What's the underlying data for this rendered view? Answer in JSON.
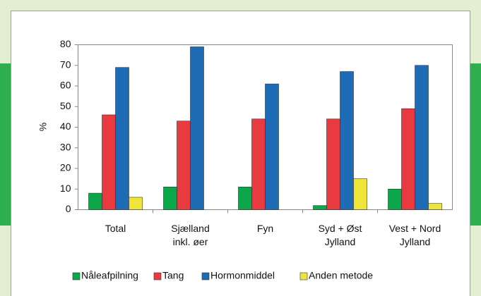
{
  "chart_data": {
    "type": "bar",
    "ylabel": "%",
    "categories": [
      [
        "Total"
      ],
      [
        "Sjælland",
        "inkl. øer"
      ],
      [
        "Fyn"
      ],
      [
        "Syd  +  Øst",
        "Jylland"
      ],
      [
        "Vest  +  Nord",
        "Jylland"
      ]
    ],
    "series": [
      {
        "name": "Nåleafpilning",
        "color": "#0ca64b",
        "values": [
          8,
          11,
          11,
          2,
          10
        ]
      },
      {
        "name": "Tang",
        "color": "#e83a3f",
        "values": [
          46,
          43,
          44,
          44,
          49
        ]
      },
      {
        "name": "Hormonmiddel",
        "color": "#1e6cb6",
        "values": [
          69,
          79,
          61,
          67,
          70
        ]
      },
      {
        "name": "Anden  metode",
        "color": "#efe53a",
        "values": [
          6,
          0,
          0,
          15,
          3
        ]
      }
    ],
    "ylim": [
      0,
      80
    ],
    "yticks": [
      0,
      10,
      20,
      30,
      40,
      50,
      60,
      70,
      80
    ],
    "grid": false,
    "legend": "bottom"
  }
}
